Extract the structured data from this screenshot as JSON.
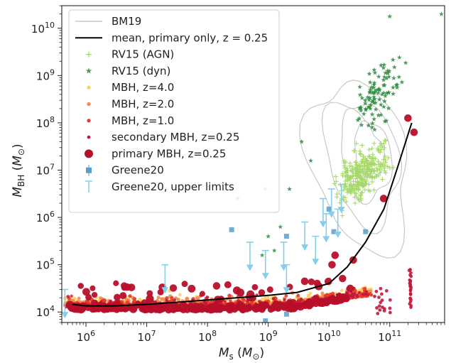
{
  "chart_data": {
    "type": "scatter",
    "xlabel": "M_s (M_⊙)",
    "ylabel": "M_BH (M_⊙)",
    "xscale": "log",
    "yscale": "log",
    "xlim": [
      400000.0,
      800000000000.0
    ],
    "ylim": [
      6000.0,
      30000000000.0
    ],
    "x_tick_labels": [
      "10^6",
      "10^7",
      "10^8",
      "10^9",
      "10^10",
      "10^11"
    ],
    "y_tick_labels": [
      "10^4",
      "10^5",
      "10^6",
      "10^7",
      "10^8",
      "10^9",
      "10^10"
    ],
    "grid": false,
    "legend_placement": "top-left",
    "colors": {
      "BM19": "#c8c8c8",
      "mean": "#000000",
      "RV15_agn": "#a6d96a",
      "RV15_dyn": "#2e8b3e",
      "MBH_z4": "#fdd065",
      "MBH_z2": "#f4894a",
      "MBH_z1": "#e03b2e",
      "secondary": "#c21a3c",
      "primary": "#b70f2a",
      "greene": "#5b9ec9",
      "greene_ul": "#87ceeb"
    },
    "series": [
      {
        "name": "BM19",
        "kind": "contour"
      },
      {
        "name": "mean, primary only, z = 0.25",
        "kind": "line",
        "x": [
          600000.0,
          1000000.0,
          3000000.0,
          10000000.0,
          30000000.0,
          100000000.0,
          300000000.0,
          1000000000.0,
          3000000000.0,
          10000000000.0,
          20000000000.0,
          40000000000.0,
          80000000000.0,
          130000000000.0,
          230000000000.0
        ],
        "y": [
          14500,
          13500,
          13500,
          14500,
          16000,
          18000,
          20000,
          22500,
          26000,
          40000,
          90000,
          300000,
          1500000,
          10000000,
          100000000
        ]
      },
      {
        "name": "RV15 (AGN)",
        "kind": "scatter"
      },
      {
        "name": "RV15 (dyn)",
        "kind": "scatter"
      },
      {
        "name": "MBH, z=4.0",
        "kind": "scatter"
      },
      {
        "name": "MBH, z=2.0",
        "kind": "scatter"
      },
      {
        "name": "MBH, z=1.0",
        "kind": "scatter"
      },
      {
        "name": "secondary MBH, z=0.25",
        "kind": "scatter"
      },
      {
        "name": "primary MBH, z=0.25",
        "kind": "scatter"
      },
      {
        "name": "Greene20",
        "kind": "scatter",
        "x": [
          250000000.0,
          900000000.0,
          2000000000.0,
          2000000000.0,
          10000000000.0,
          12000000000.0,
          40000000000.0
        ],
        "y": [
          550000,
          6500,
          400000,
          9000,
          1500000,
          500000,
          500000
        ]
      },
      {
        "name": "Greene20, upper limits",
        "kind": "upper_limit",
        "x": [
          450000.0,
          20000000.0,
          500000000.0,
          900000000.0,
          1800000000.0,
          2000000000.0,
          4000000000.0,
          6000000000.0,
          8000000000.0,
          9000000000.0,
          11000000000.0,
          14000000000.0,
          16000000000.0
        ],
        "y": [
          30000,
          100000,
          300000,
          200000,
          300000,
          100000,
          800000,
          400000,
          2500000,
          1200000,
          4000000,
          1500000,
          5000000
        ]
      }
    ]
  }
}
